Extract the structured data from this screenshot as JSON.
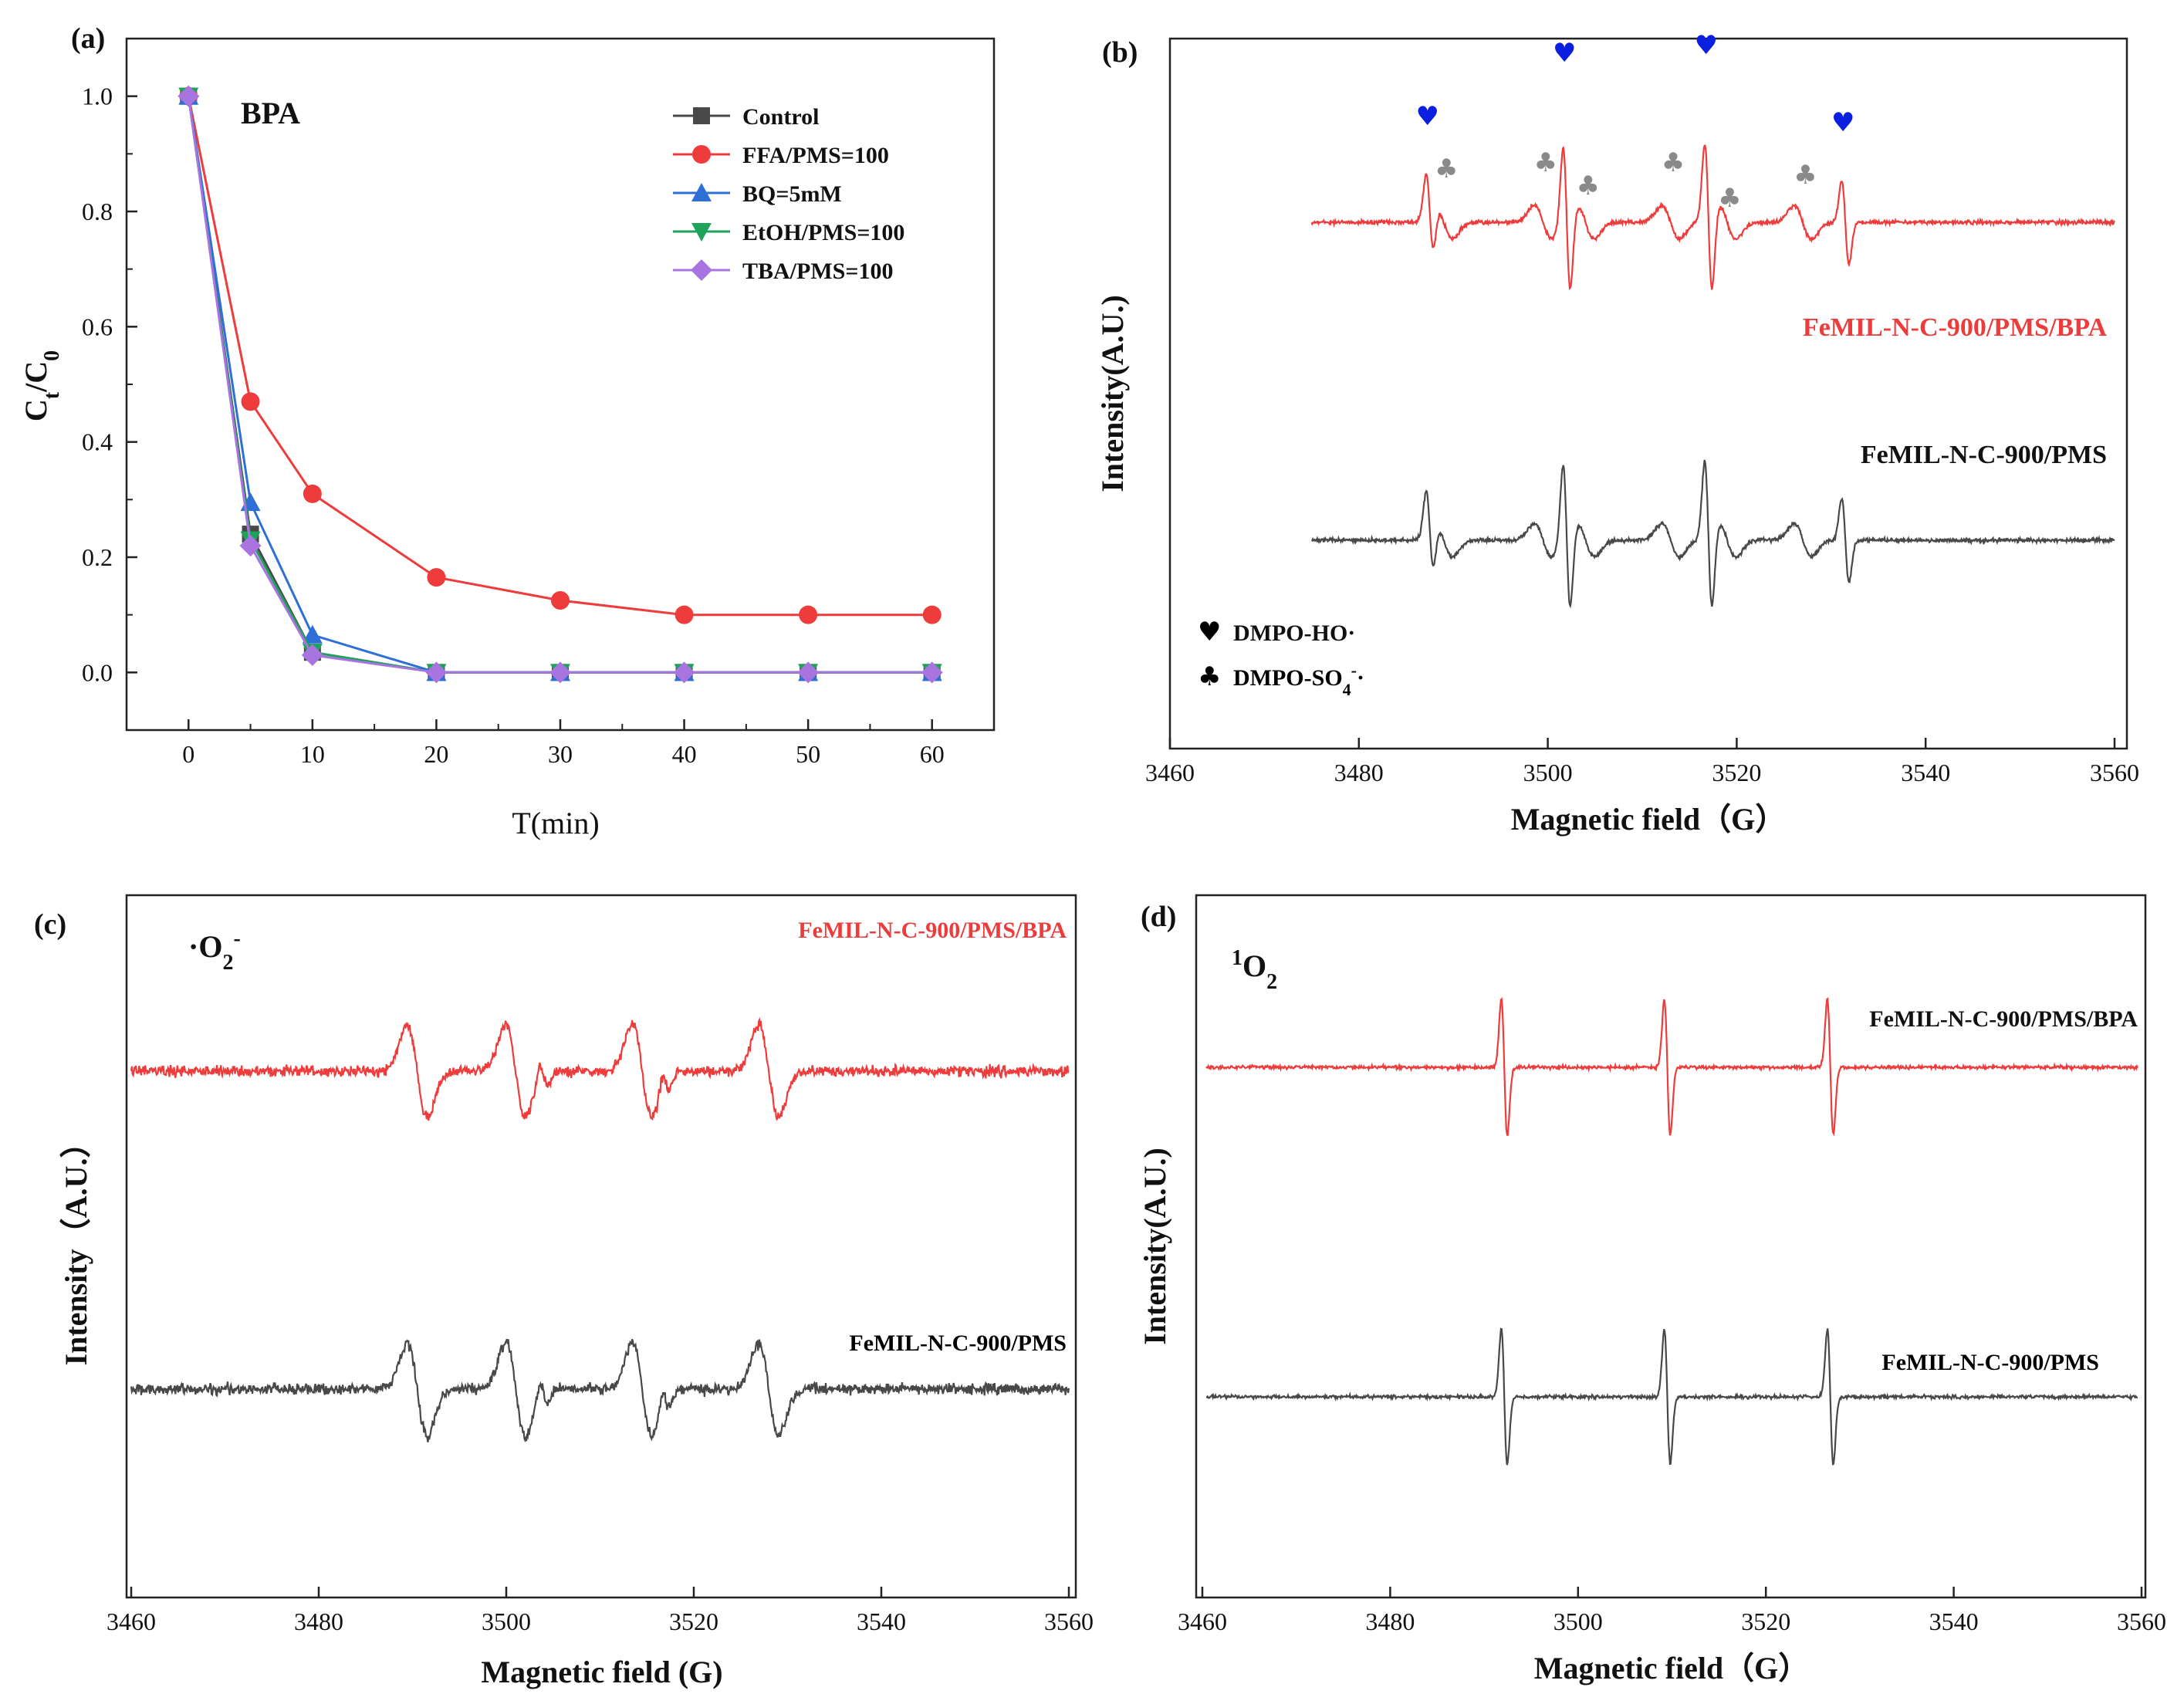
{
  "colors": {
    "red": "#ee3b3b",
    "gray": "#484848",
    "blue": "#2d6fd6",
    "green": "#1fa35c",
    "purple": "#a774e0",
    "heart": "#0a1fe0",
    "club": "#8a8a8a"
  },
  "chart_data": [
    {
      "id": "a",
      "type": "line",
      "panel_label": "(a)",
      "title": "BPA",
      "xlabel": "T(min)",
      "ylabel_main": "C",
      "ylabel_sub1": "t",
      "ylabel_mid": "/C",
      "ylabel_sub2": "0",
      "x": [
        0,
        5,
        10,
        20,
        30,
        40,
        50,
        60
      ],
      "xlim": [
        -5,
        65
      ],
      "ylim": [
        -0.1,
        1.1
      ],
      "xticks": [
        0,
        10,
        20,
        30,
        40,
        50,
        60
      ],
      "yticks": [
        0.0,
        0.2,
        0.4,
        0.6,
        0.8,
        1.0
      ],
      "ytick_labels": [
        "0.0",
        "0.2",
        "0.4",
        "0.6",
        "0.8",
        "1.0"
      ],
      "legend_position": "top-right",
      "series": [
        {
          "name": "Control",
          "marker": "square",
          "color": "#484848",
          "values": [
            1.0,
            0.24,
            0.035,
            0.0,
            0.0,
            0.0,
            0.0,
            0.0
          ]
        },
        {
          "name": "FFA/PMS=100",
          "marker": "circle",
          "color": "#ee3b3b",
          "values": [
            1.0,
            0.47,
            0.31,
            0.165,
            0.125,
            0.1,
            0.1,
            0.1
          ]
        },
        {
          "name": "BQ=5mM",
          "marker": "triangle-up",
          "color": "#2d6fd6",
          "values": [
            1.0,
            0.295,
            0.065,
            0.0,
            0.0,
            0.0,
            0.0,
            0.0
          ]
        },
        {
          "name": "EtOH/PMS=100",
          "marker": "triangle-down",
          "color": "#1fa35c",
          "values": [
            1.0,
            0.23,
            0.035,
            0.0,
            0.0,
            0.0,
            0.0,
            0.0
          ]
        },
        {
          "name": "TBA/PMS=100",
          "marker": "diamond",
          "color": "#a774e0",
          "values": [
            1.0,
            0.22,
            0.03,
            0.0,
            0.0,
            0.0,
            0.0,
            0.0
          ]
        }
      ]
    },
    {
      "id": "b",
      "type": "line",
      "panel_label": "(b)",
      "xlabel": "Magnetic field（G）",
      "ylabel": "Intensity(A.U.)",
      "xlim": [
        3460,
        3560
      ],
      "xticks": [
        3460,
        3480,
        3500,
        3520,
        3540,
        3560
      ],
      "series": [
        {
          "name": "FeMIL-N-C-900/PMS/BPA",
          "color": "#ee3b3b"
        },
        {
          "name": "FeMIL-N-C-900/PMS",
          "color": "#484848"
        }
      ],
      "peaks_ho": [
        3487,
        3501.5,
        3516.5,
        3531
      ],
      "peaks_so4": [
        3489,
        3499.5,
        3504,
        3513,
        3519,
        3527
      ],
      "legend": {
        "ho_label": "DMPO-HO·",
        "so4_main": "DMPO-SO",
        "so4_sub": "4",
        "so4_sup": "-",
        "so4_dot": "·"
      },
      "legend_position": "bottom-left"
    },
    {
      "id": "c",
      "type": "line",
      "panel_label": "(c)",
      "species": "·O",
      "species_sub": "2",
      "species_sup": "-",
      "xlabel": "Magnetic field (G)",
      "ylabel": "Intensity（A.U.）",
      "xlim": [
        3460,
        3560
      ],
      "xticks": [
        3460,
        3480,
        3500,
        3520,
        3540,
        3560
      ],
      "peaks": [
        3490.5,
        3501,
        3514.5,
        3528
      ],
      "series": [
        {
          "name": "FeMIL-N-C-900/PMS/BPA",
          "color": "#ee3b3b"
        },
        {
          "name": "FeMIL-N-C-900/PMS",
          "color": "#484848"
        }
      ]
    },
    {
      "id": "d",
      "type": "line",
      "panel_label": "(d)",
      "species_sup": "1",
      "species": "O",
      "species_sub": "2",
      "xlabel": "Magnetic field（G）",
      "ylabel": "Intensity(A.U.)",
      "xlim": [
        3460,
        3560
      ],
      "xticks": [
        3460,
        3480,
        3500,
        3520,
        3540,
        3560
      ],
      "peaks": [
        3492,
        3509.5,
        3527
      ],
      "series": [
        {
          "name": "FeMIL-N-C-900/PMS/BPA",
          "color": "#ee3b3b"
        },
        {
          "name": "FeMIL-N-C-900/PMS",
          "color": "#484848"
        }
      ]
    }
  ]
}
